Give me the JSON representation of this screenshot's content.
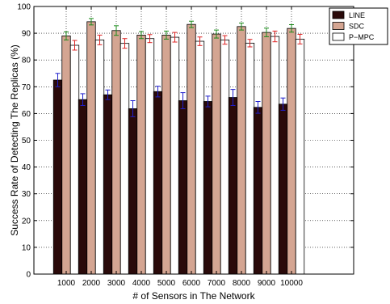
{
  "chart_data": {
    "type": "bar",
    "title": "",
    "xlabel": "# of Sensors in The Network",
    "ylabel": "Success Rate of Detecting The Replicas (%)",
    "ylim": [
      0,
      100
    ],
    "yticks": [
      "0",
      "10",
      "20",
      "30",
      "40",
      "50",
      "60",
      "70",
      "80",
      "90",
      "100"
    ],
    "categories": [
      "1000",
      "2000",
      "3000",
      "4000",
      "5000",
      "6000",
      "7000",
      "8000",
      "9000",
      "10000"
    ],
    "grid": true,
    "legend_position": "top-right",
    "series": [
      {
        "name": "LINE",
        "color": "#2a0a0a",
        "error_color": "#1f1fcc",
        "values": [
          72.5,
          65.2,
          67.0,
          61.8,
          68.2,
          64.8,
          64.5,
          66.0,
          62.3,
          63.5
        ],
        "errors": [
          2.5,
          2.2,
          1.8,
          3.0,
          2.0,
          3.0,
          2.0,
          3.0,
          2.2,
          2.3
        ]
      },
      {
        "name": "SDC",
        "color": "#d4a592",
        "error_color": "#1a8a1a",
        "values": [
          89.0,
          94.3,
          91.0,
          89.3,
          89.3,
          93.3,
          89.7,
          92.5,
          90.3,
          91.8
        ],
        "errors": [
          1.5,
          1.2,
          1.8,
          1.3,
          1.5,
          1.2,
          1.5,
          1.3,
          1.6,
          1.4
        ]
      },
      {
        "name": "P−MPC",
        "color": "#ffffff",
        "error_color": "#dd2222",
        "values": [
          85.5,
          87.5,
          86.2,
          88.0,
          88.5,
          87.0,
          87.5,
          86.3,
          88.8,
          87.8
        ],
        "errors": [
          1.8,
          1.8,
          1.8,
          1.5,
          1.8,
          1.6,
          1.6,
          1.4,
          2.0,
          1.8
        ]
      }
    ]
  }
}
